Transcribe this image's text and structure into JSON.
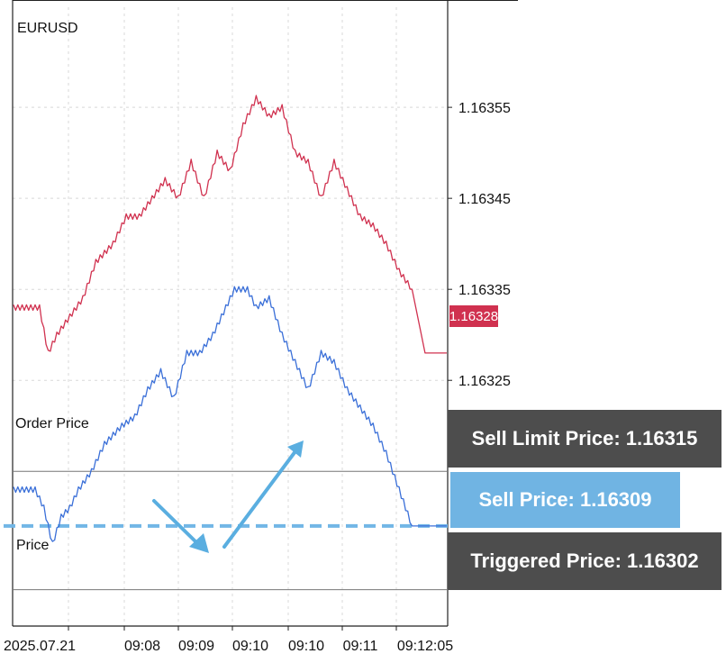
{
  "symbol": "EURUSD",
  "chart_data": {
    "type": "line",
    "ylim": [
      1.16298,
      1.16366
    ],
    "y_ticks": [
      "1.16355",
      "1.16345",
      "1.16335",
      "1.16325"
    ],
    "x_tick_labels": [
      "2025.07.21",
      "09:08",
      "09:09",
      "09:10",
      "09:10",
      "09:11",
      "09:12:05"
    ],
    "grid": true,
    "series": [
      {
        "color": "#d0314f",
        "x": [
          0,
          6,
          8,
          10,
          13,
          16,
          19,
          21,
          23,
          26,
          29,
          32,
          35,
          38,
          41,
          44,
          47,
          50,
          53,
          56,
          59,
          62,
          65,
          68,
          71,
          74,
          77,
          80,
          83,
          86,
          89,
          92,
          95,
          98,
          100
        ],
        "values": [
          1.16333,
          1.16333,
          1.16328,
          1.1633,
          1.16332,
          1.16334,
          1.16338,
          1.16339,
          1.1634,
          1.16343,
          1.16343,
          1.16345,
          1.16347,
          1.16345,
          1.16349,
          1.16345,
          1.1635,
          1.16348,
          1.16353,
          1.16356,
          1.16354,
          1.16355,
          1.1635,
          1.16349,
          1.16345,
          1.16349,
          1.16346,
          1.16343,
          1.16342,
          1.1634,
          1.16337,
          1.16335,
          1.16328,
          1.16328,
          1.16328
        ]
      },
      {
        "color": "#3a6fd8",
        "x": [
          0,
          5,
          7,
          9,
          11,
          13,
          15,
          18,
          21,
          25,
          28,
          31,
          34,
          37,
          40,
          43,
          46,
          49,
          51,
          54,
          56,
          59,
          62,
          65,
          68,
          71,
          74,
          77,
          80,
          83,
          86,
          89,
          92,
          95,
          98,
          100
        ],
        "values": [
          1.16313,
          1.16313,
          1.16311,
          1.16307,
          1.1631,
          1.16311,
          1.16313,
          1.16315,
          1.16318,
          1.1632,
          1.16321,
          1.16324,
          1.16326,
          1.16323,
          1.16328,
          1.16328,
          1.1633,
          1.16333,
          1.16335,
          1.16335,
          1.16333,
          1.16334,
          1.1633,
          1.16327,
          1.16324,
          1.16328,
          1.16327,
          1.16324,
          1.16322,
          1.1632,
          1.16317,
          1.16313,
          1.16309,
          1.16309,
          1.16309,
          1.16309
        ]
      }
    ]
  },
  "last_price_tag": "1.16328",
  "order_price_label": "Order Price",
  "price_label": "Price",
  "callouts": {
    "sell_limit": "Sell Limit Price: 1.16315",
    "sell_price": "Sell Price: 1.16309",
    "triggered": "Triggered Price: 1.16302"
  },
  "colors": {
    "ask_line": "#d0314f",
    "bid_line": "#3a6fd8",
    "dashed_line": "#72b6e6",
    "arrow": "#5aaee0",
    "dark_box": "#4d4d4d",
    "blue_box": "#70b4e3",
    "price_tag": "#d0314f"
  }
}
